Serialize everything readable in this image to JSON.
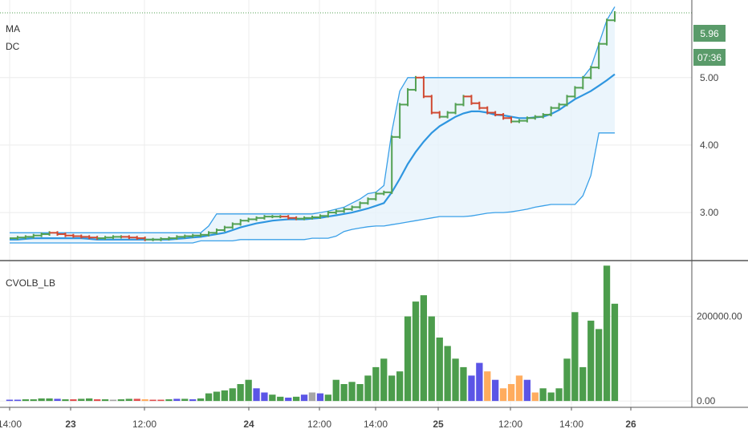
{
  "colors": {
    "up": "#53a153",
    "down": "#d04a32",
    "ma_line": "#2f96e0",
    "dc_band": "#3aa0e8",
    "dc_fill": "#e6f3fb",
    "last_price_bg": "#5a9b6a",
    "vol_green": "#4c9d4c",
    "vol_blue": "#5b55e6",
    "vol_orange": "#ffac5e",
    "vol_red": "#e05050",
    "vol_gray": "#a6a6a6",
    "grid": "#ececec",
    "axis_text": "#444444"
  },
  "labels": {
    "ma": "MA",
    "dc": "DC",
    "vol_indicator": "CVOLB_LB",
    "last_price": "5.96",
    "countdown": "07:36"
  },
  "chart_data": [
    {
      "type": "line",
      "name": "price",
      "yaxis": {
        "ticks": [
          "5.00",
          "4.00",
          "3.00"
        ],
        "tick_values": [
          5.0,
          4.0,
          3.0
        ],
        "range": [
          2.3,
          6.15
        ]
      },
      "xaxis": {
        "ticks": [
          "14:00",
          "23",
          "12:00",
          "24",
          "12:00",
          "14:00",
          "25",
          "12:00",
          "14:00",
          "26"
        ]
      },
      "series": [
        {
          "values": [
            2.62,
            2.63,
            2.64,
            2.66,
            2.68,
            2.7,
            2.68,
            2.66,
            2.65,
            2.64,
            2.63,
            2.62,
            2.63,
            2.64,
            2.64,
            2.63,
            2.62,
            2.6,
            2.6,
            2.61,
            2.62,
            2.64,
            2.65,
            2.66,
            2.67,
            2.7,
            2.74,
            2.78,
            2.83,
            2.88,
            2.9,
            2.92,
            2.94,
            2.94,
            2.94,
            2.92,
            2.91,
            2.92,
            2.93,
            2.95,
            3.0,
            3.02,
            3.05,
            3.08,
            3.14,
            3.2,
            3.28,
            3.3,
            4.12,
            4.6,
            4.82,
            5.0,
            4.72,
            4.48,
            4.42,
            4.48,
            4.6,
            4.72,
            4.62,
            4.55,
            4.48,
            4.45,
            4.4,
            4.35,
            4.36,
            4.4,
            4.42,
            4.45,
            4.55,
            4.6,
            4.72,
            4.85,
            5.0,
            5.15,
            5.5,
            5.85,
            5.96
          ]
        },
        {
          "values": [
            2.6,
            2.6,
            2.61,
            2.62,
            2.62,
            2.62,
            2.62,
            2.62,
            2.62,
            2.62,
            2.61,
            2.6,
            2.6,
            2.6,
            2.6,
            2.6,
            2.6,
            2.6,
            2.6,
            2.6,
            2.6,
            2.61,
            2.62,
            2.63,
            2.64,
            2.66,
            2.68,
            2.7,
            2.74,
            2.78,
            2.81,
            2.84,
            2.86,
            2.88,
            2.89,
            2.9,
            2.9,
            2.9,
            2.91,
            2.92,
            2.94,
            2.96,
            2.98,
            3.0,
            3.03,
            3.06,
            3.1,
            3.14,
            3.3,
            3.5,
            3.72,
            3.9,
            4.05,
            4.18,
            4.28,
            4.35,
            4.42,
            4.47,
            4.5,
            4.5,
            4.48,
            4.45,
            4.44,
            4.42,
            4.4,
            4.4,
            4.41,
            4.42,
            4.46,
            4.52,
            4.6,
            4.68,
            4.74,
            4.8,
            4.88,
            4.96,
            5.05
          ]
        },
        {
          "values": [
            2.7,
            2.7,
            2.7,
            2.7,
            2.7,
            2.7,
            2.7,
            2.7,
            2.7,
            2.7,
            2.7,
            2.7,
            2.7,
            2.7,
            2.7,
            2.7,
            2.7,
            2.7,
            2.7,
            2.7,
            2.7,
            2.7,
            2.7,
            2.7,
            2.7,
            2.8,
            2.98,
            2.98,
            2.98,
            2.98,
            2.98,
            2.98,
            2.98,
            2.98,
            2.98,
            2.98,
            2.98,
            2.98,
            2.98,
            3.0,
            3.02,
            3.05,
            3.08,
            3.14,
            3.2,
            3.28,
            3.3,
            3.4,
            4.2,
            4.8,
            5.0,
            5.0,
            5.0,
            5.0,
            5.0,
            5.0,
            5.0,
            5.0,
            5.0,
            5.0,
            5.0,
            5.0,
            5.0,
            5.0,
            5.0,
            5.0,
            5.0,
            5.0,
            5.0,
            5.0,
            5.0,
            5.0,
            5.0,
            5.15,
            5.5,
            5.85,
            6.05
          ]
        },
        {
          "values": [
            2.55,
            2.55,
            2.55,
            2.55,
            2.55,
            2.55,
            2.55,
            2.55,
            2.55,
            2.55,
            2.55,
            2.55,
            2.55,
            2.55,
            2.55,
            2.55,
            2.55,
            2.55,
            2.55,
            2.55,
            2.55,
            2.55,
            2.55,
            2.55,
            2.58,
            2.58,
            2.58,
            2.58,
            2.58,
            2.6,
            2.6,
            2.6,
            2.6,
            2.6,
            2.6,
            2.6,
            2.6,
            2.6,
            2.62,
            2.62,
            2.62,
            2.65,
            2.72,
            2.75,
            2.77,
            2.79,
            2.8,
            2.8,
            2.82,
            2.84,
            2.86,
            2.88,
            2.9,
            2.92,
            2.94,
            2.94,
            2.94,
            2.94,
            2.95,
            2.97,
            2.99,
            3.0,
            3.0,
            3.01,
            3.03,
            3.05,
            3.08,
            3.1,
            3.12,
            3.12,
            3.12,
            3.12,
            3.25,
            3.55,
            4.18,
            4.18,
            4.18
          ]
        }
      ]
    },
    {
      "type": "bar",
      "name": "CVOLB_LB",
      "yaxis": {
        "ticks": [
          "200000.00",
          "0.00"
        ],
        "tick_values": [
          200000,
          0
        ],
        "range": [
          -15000,
          330000
        ]
      },
      "values": [
        3000,
        3000,
        4000,
        4000,
        6000,
        6000,
        5000,
        4000,
        4000,
        5000,
        6000,
        4000,
        4000,
        3000,
        4000,
        5000,
        5000,
        4000,
        3000,
        3000,
        4000,
        5000,
        5000,
        4000,
        6000,
        18000,
        22000,
        25000,
        30000,
        40000,
        50000,
        30000,
        20000,
        15000,
        10000,
        8000,
        10000,
        15000,
        20000,
        18000,
        15000,
        50000,
        40000,
        45000,
        40000,
        60000,
        80000,
        100000,
        60000,
        70000,
        200000,
        235000,
        250000,
        200000,
        150000,
        130000,
        100000,
        80000,
        60000,
        90000,
        70000,
        50000,
        30000,
        40000,
        60000,
        50000,
        20000,
        30000,
        20000,
        30000,
        100000,
        210000,
        80000,
        190000,
        170000,
        320000,
        230000
      ],
      "colors": [
        "blue",
        "blue",
        "green",
        "green",
        "green",
        "green",
        "blue",
        "green",
        "red",
        "green",
        "green",
        "red",
        "green",
        "gray",
        "green",
        "green",
        "red",
        "orange",
        "red",
        "red",
        "green",
        "blue",
        "green",
        "blue",
        "green",
        "green",
        "green",
        "green",
        "green",
        "green",
        "green",
        "blue",
        "blue",
        "green",
        "green",
        "blue",
        "green",
        "blue",
        "gray",
        "blue",
        "green",
        "green",
        "green",
        "green",
        "green",
        "green",
        "green",
        "green",
        "green",
        "green",
        "green",
        "green",
        "green",
        "green",
        "green",
        "green",
        "green",
        "green",
        "blue",
        "blue",
        "orange",
        "blue",
        "orange",
        "orange",
        "orange",
        "blue",
        "orange",
        "green",
        "green",
        "green",
        "green",
        "green",
        "green",
        "green",
        "green",
        "green",
        "green"
      ]
    }
  ]
}
